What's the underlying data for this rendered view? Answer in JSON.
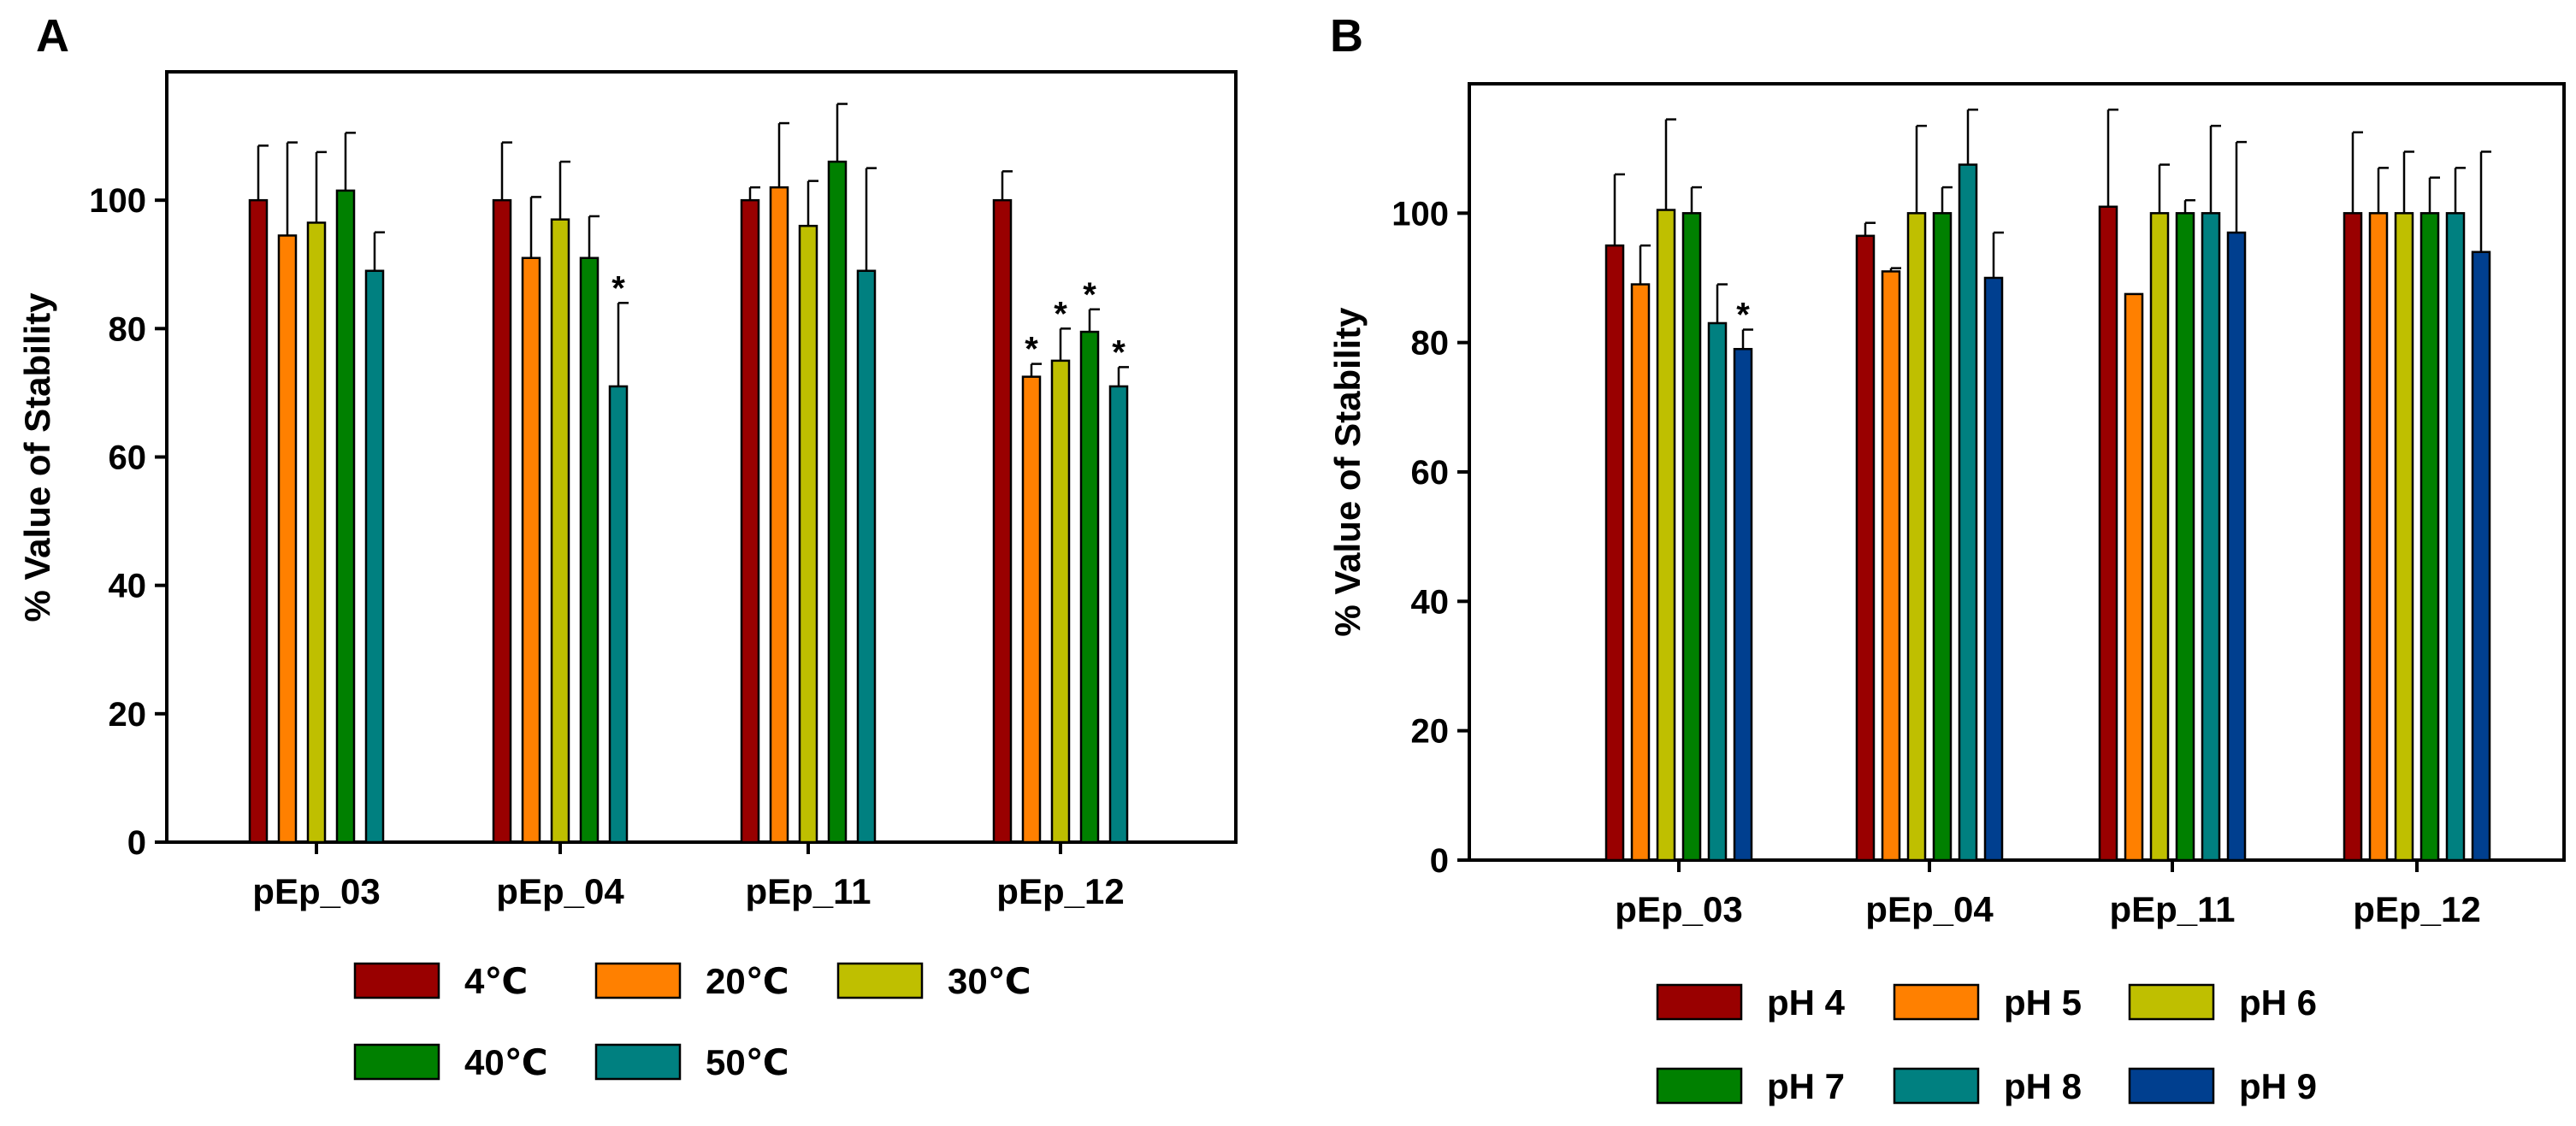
{
  "chart_data": [
    {
      "panel": "A",
      "type": "bar",
      "ylabel": "% Value of Stability",
      "xlabel": "",
      "ylim": [
        0,
        120
      ],
      "yticks": [
        0,
        20,
        40,
        60,
        80,
        100
      ],
      "categories": [
        "pEp_03",
        "pEp_04",
        "pEp_11",
        "pEp_12"
      ],
      "series": [
        {
          "name": "4℃",
          "color": "#990000",
          "values": [
            100,
            100,
            100,
            100
          ],
          "errors": [
            8.5,
            9,
            2,
            4.5
          ],
          "significant": [
            false,
            false,
            false,
            false
          ]
        },
        {
          "name": "20℃",
          "color": "#ff8000",
          "values": [
            94.5,
            91,
            102,
            72.5
          ],
          "errors": [
            14.5,
            9.5,
            10,
            2
          ],
          "significant": [
            false,
            false,
            false,
            true
          ]
        },
        {
          "name": "30℃",
          "color": "#bfbf00",
          "values": [
            96.5,
            97,
            96,
            75
          ],
          "errors": [
            11,
            9,
            7,
            5
          ],
          "significant": [
            false,
            false,
            false,
            true
          ]
        },
        {
          "name": "40℃",
          "color": "#008000",
          "values": [
            101.5,
            91,
            106,
            79.5
          ],
          "errors": [
            9,
            6.5,
            9,
            3.5
          ],
          "significant": [
            false,
            false,
            false,
            true
          ]
        },
        {
          "name": "50℃",
          "color": "#008080",
          "values": [
            89,
            71,
            89,
            71
          ],
          "errors": [
            6,
            13,
            16,
            3
          ],
          "significant": [
            false,
            true,
            false,
            true
          ]
        }
      ],
      "significance_marker": "*",
      "legend_position": "bottom"
    },
    {
      "panel": "B",
      "type": "bar",
      "ylabel": "% Value of Stability",
      "xlabel": "",
      "ylim": [
        0,
        120
      ],
      "yticks": [
        0,
        20,
        40,
        60,
        80,
        100
      ],
      "categories": [
        "pEp_03",
        "pEp_04",
        "pEp_11",
        "pEp_12"
      ],
      "series": [
        {
          "name": "pH 4",
          "color": "#990000",
          "values": [
            95,
            96.5,
            101,
            100
          ],
          "errors": [
            11,
            2,
            15,
            12.5
          ],
          "significant": [
            false,
            false,
            false,
            false
          ]
        },
        {
          "name": "pH 5",
          "color": "#ff8000",
          "values": [
            89,
            91,
            87.5,
            100
          ],
          "errors": [
            6,
            0.5,
            0,
            7
          ],
          "significant": [
            false,
            false,
            false,
            false
          ]
        },
        {
          "name": "pH 6",
          "color": "#bfbf00",
          "values": [
            100.5,
            100,
            100,
            100
          ],
          "errors": [
            14,
            13.5,
            7.5,
            9.5
          ],
          "significant": [
            false,
            false,
            false,
            false
          ]
        },
        {
          "name": "pH 7",
          "color": "#008000",
          "values": [
            100,
            100,
            100,
            100
          ],
          "errors": [
            4,
            4,
            2,
            5.5
          ],
          "significant": [
            false,
            false,
            false,
            false
          ]
        },
        {
          "name": "pH 8",
          "color": "#008080",
          "values": [
            83,
            107.5,
            100,
            100
          ],
          "errors": [
            6,
            8.5,
            13.5,
            7
          ],
          "significant": [
            false,
            false,
            false,
            false
          ]
        },
        {
          "name": "pH 9",
          "color": "#003f8f",
          "values": [
            79,
            90,
            97,
            94
          ],
          "errors": [
            3,
            7,
            14,
            15.5
          ],
          "significant": [
            true,
            false,
            false,
            false
          ]
        }
      ],
      "significance_marker": "*",
      "legend_position": "bottom"
    }
  ]
}
